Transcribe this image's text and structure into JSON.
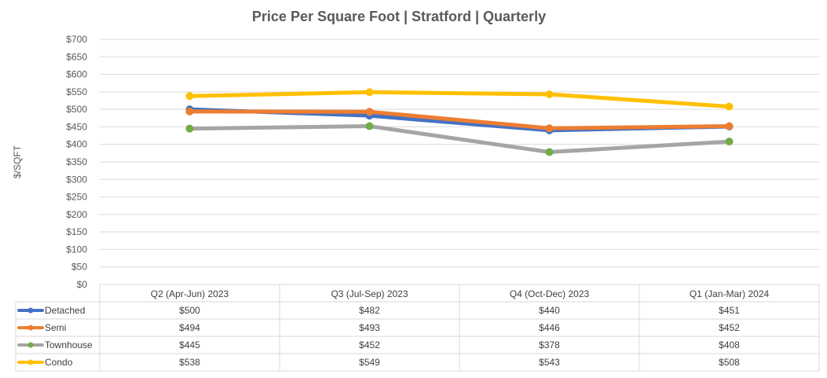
{
  "chart_data": {
    "type": "line",
    "title": "Price Per Square Foot | Stratford | Quarterly",
    "ylabel": "$/SQFT",
    "xlabel": "",
    "ylim": [
      0,
      700
    ],
    "ytick_step": 50,
    "yticks": [
      "$0",
      "$50",
      "$100",
      "$150",
      "$200",
      "$250",
      "$300",
      "$350",
      "$400",
      "$450",
      "$500",
      "$550",
      "$600",
      "$650",
      "$700"
    ],
    "grid": true,
    "legend": "data-table-left",
    "categories": [
      "Q2 (Apr-Jun) 2023",
      "Q3 (Jul-Sep) 2023",
      "Q4 (Oct-Dec) 2023",
      "Q1 (Jan-Mar) 2024"
    ],
    "series": [
      {
        "name": "Detached",
        "values": [
          500,
          482,
          440,
          451
        ],
        "labels": [
          "$500",
          "$482",
          "$440",
          "$451"
        ],
        "line_color": "#4472c4",
        "marker_color": "#4472c4"
      },
      {
        "name": "Semi",
        "values": [
          494,
          493,
          446,
          452
        ],
        "labels": [
          "$494",
          "$493",
          "$446",
          "$452"
        ],
        "line_color": "#ed7d31",
        "marker_color": "#ed7d31"
      },
      {
        "name": "Townhouse",
        "values": [
          445,
          452,
          378,
          408
        ],
        "labels": [
          "$445",
          "$452",
          "$378",
          "$408"
        ],
        "line_color": "#a5a5a5",
        "marker_color": "#70ad47"
      },
      {
        "name": "Condo",
        "values": [
          538,
          549,
          543,
          508
        ],
        "labels": [
          "$538",
          "$549",
          "$543",
          "$508"
        ],
        "line_color": "#ffc000",
        "marker_color": "#ffc000"
      }
    ]
  }
}
